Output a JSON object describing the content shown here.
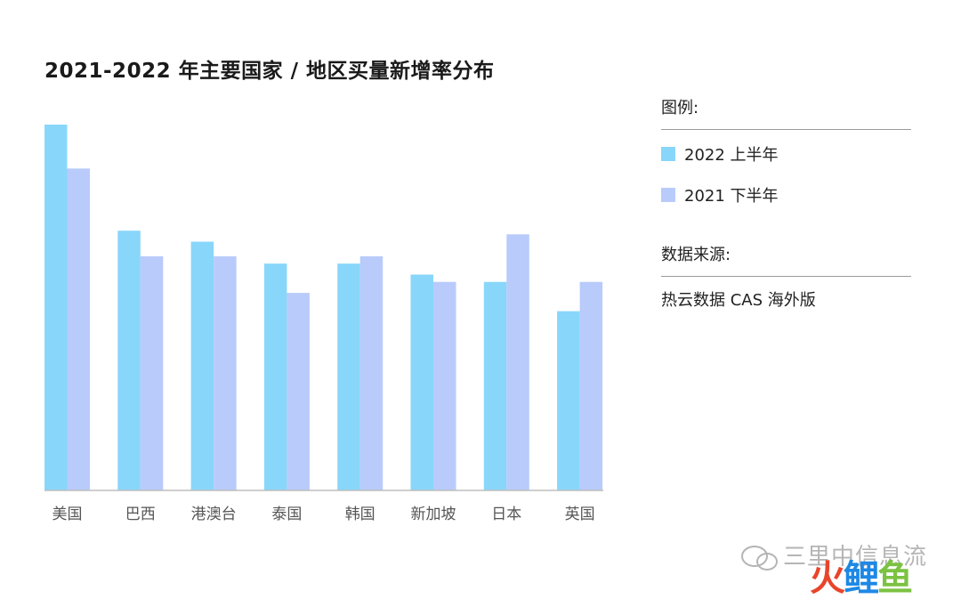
{
  "title": "2021-2022 年主要国家 / 地区买量新增率分布",
  "legend": {
    "heading": "图例:",
    "items": [
      {
        "label": "2022 上半年",
        "color": "#89d6fb"
      },
      {
        "label": "2021 下半年",
        "color": "#b8cbfb"
      }
    ]
  },
  "source": {
    "heading": "数据来源:",
    "text": "热云数据 CAS 海外版"
  },
  "watermark": {
    "text": "三里中信息流",
    "logo": [
      "火",
      "鲤",
      "鱼"
    ]
  },
  "chart_data": {
    "type": "bar",
    "title": "2021-2022 年主要国家 / 地区买量新增率分布",
    "xlabel": "",
    "ylabel": "",
    "ylim": [
      0,
      100
    ],
    "grid": false,
    "y_axis_shown": false,
    "legend_position": "right",
    "categories": [
      "美国",
      "巴西",
      "港澳台",
      "泰国",
      "韩国",
      "新加坡",
      "日本",
      "英国"
    ],
    "series": [
      {
        "name": "2022 上半年",
        "color": "#89d6fb",
        "values": [
          100,
          71,
          68,
          62,
          62,
          59,
          57,
          49
        ]
      },
      {
        "name": "2021 下半年",
        "color": "#b8cbfb",
        "values": [
          88,
          64,
          64,
          54,
          64,
          57,
          70,
          57
        ]
      }
    ]
  }
}
